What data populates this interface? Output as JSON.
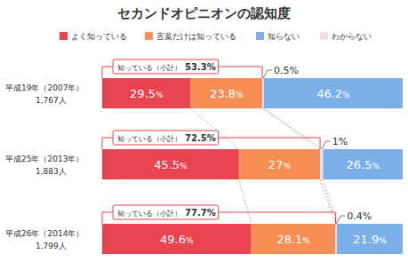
{
  "chart_data": {
    "type": "bar",
    "orientation": "horizontal",
    "stacked": true,
    "data_labels": true,
    "tick_labels": false,
    "title": "セカンドオピニオンの認知度",
    "categories": [
      "平成19年（2007年）",
      "平成25年（2013年）",
      "平成26年（2014年）"
    ],
    "respondents": [
      1767,
      1883,
      1799
    ],
    "respondents_labels": [
      "1,767人",
      "1,883人",
      "1,799人"
    ],
    "xlim": [
      0,
      100
    ],
    "series": [
      {
        "name": "よく知っている",
        "color": "#e8434f",
        "values": [
          29.5,
          45.5,
          49.6
        ],
        "value_labels": [
          "29.5%",
          "45.5%",
          "49.6%"
        ]
      },
      {
        "name": "言葉だけは知っている",
        "color": "#f78f55",
        "values": [
          23.8,
          27,
          28.1
        ],
        "value_labels": [
          "23.8%",
          "27%",
          "28.1%"
        ]
      },
      {
        "name": "知らない",
        "color": "#7aafe9",
        "values": [
          46.2,
          26.5,
          21.9
        ],
        "value_labels": [
          "46.2%",
          "26.5%",
          "21.9%"
        ]
      },
      {
        "name": "わからない",
        "color": "#f6dede",
        "values": [
          0.5,
          1,
          0.4
        ],
        "value_labels": [
          "0.5%",
          "1%",
          "0.4%"
        ]
      }
    ],
    "subtotals": {
      "label": "知っている（小計）",
      "values": [
        53.3,
        72.5,
        77.7
      ],
      "value_labels": [
        "53.3%",
        "72.5%",
        "77.7%"
      ]
    }
  }
}
